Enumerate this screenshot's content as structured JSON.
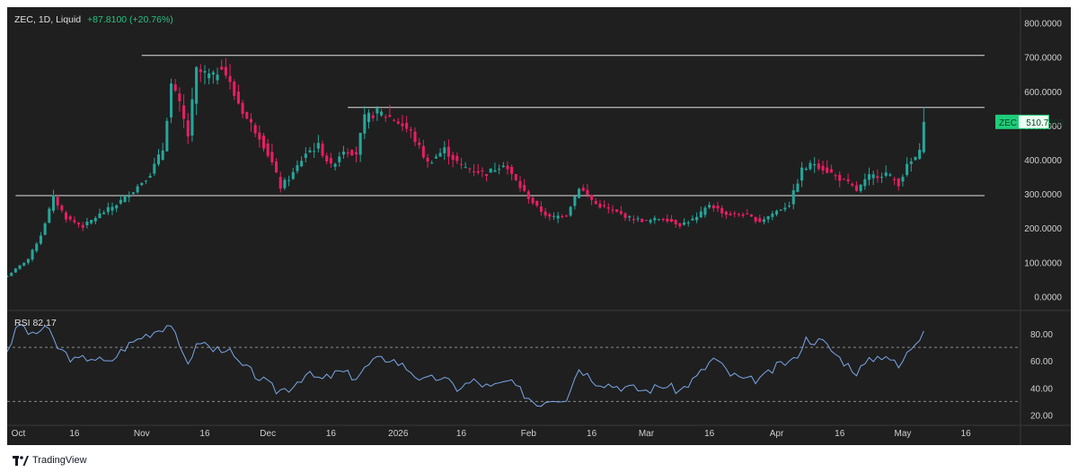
{
  "legend": {
    "symbol": "ZEC, 1D, Liquid",
    "change": "+87.8100 (+20.76%)"
  },
  "rsi_legend": {
    "label": "RSI",
    "value": "82.17"
  },
  "footer": {
    "brand": "TradingView"
  },
  "price_badge": {
    "symbol": "ZEC",
    "price": "510.7200"
  },
  "colors": {
    "background": "#1f1f1f",
    "up": "#26a69a",
    "down": "#e91e63",
    "rsi": "#7aa7e8",
    "line": "#e0e0e0",
    "badge": "#1dce7a"
  },
  "chart_data": [
    {
      "type": "candlestick",
      "title": "",
      "symbol": "ZEC",
      "interval": "1D",
      "ylim": [
        -20,
        820
      ],
      "y_ticks": [
        "0.0000",
        "100.0000",
        "200.0000",
        "300.0000",
        "400.0000",
        "500.0000",
        "600.0000",
        "700.0000",
        "800.0000"
      ],
      "y_tick_values": [
        0,
        100,
        200,
        300,
        400,
        500,
        600,
        700,
        800
      ],
      "x_ticks": [
        "Oct",
        "16",
        "Nov",
        "16",
        "Dec",
        "16",
        "2026",
        "16",
        "Feb",
        "16",
        "Mar",
        "16",
        "Apr",
        "16",
        "May",
        "16"
      ],
      "x_tick_dates": [
        "2025-10-01",
        "2025-10-16",
        "2025-11-01",
        "2025-11-16",
        "2025-12-01",
        "2025-12-16",
        "2026-01-01",
        "2026-01-16",
        "2026-02-01",
        "2026-02-16",
        "2026-03-01",
        "2026-03-16",
        "2026-04-01",
        "2026-04-16",
        "2026-05-01",
        "2026-05-16"
      ],
      "x_range": [
        "2025-09-30",
        "2026-05-29"
      ],
      "horizontal_lines": [
        {
          "y": 705,
          "from": "2025-11-01",
          "to": "2026-05-29"
        },
        {
          "y": 553,
          "from": "2025-12-20",
          "to": "2026-05-29"
        },
        {
          "y": 295,
          "from": "2025-10-02",
          "to": "2026-05-29"
        }
      ],
      "close_anchors": [
        [
          "2025-09-30",
          60
        ],
        [
          "2025-10-05",
          110
        ],
        [
          "2025-10-08",
          180
        ],
        [
          "2025-10-11",
          290
        ],
        [
          "2025-10-14",
          230
        ],
        [
          "2025-10-18",
          205
        ],
        [
          "2025-10-22",
          240
        ],
        [
          "2025-10-26",
          270
        ],
        [
          "2025-10-30",
          310
        ],
        [
          "2025-11-03",
          360
        ],
        [
          "2025-11-06",
          430
        ],
        [
          "2025-11-08",
          620
        ],
        [
          "2025-11-10",
          560
        ],
        [
          "2025-11-12",
          470
        ],
        [
          "2025-11-14",
          660
        ],
        [
          "2025-11-18",
          640
        ],
        [
          "2025-11-20",
          680
        ],
        [
          "2025-11-23",
          590
        ],
        [
          "2025-11-26",
          520
        ],
        [
          "2025-11-29",
          470
        ],
        [
          "2025-12-02",
          390
        ],
        [
          "2025-12-04",
          320
        ],
        [
          "2025-12-07",
          360
        ],
        [
          "2025-12-10",
          420
        ],
        [
          "2025-12-13",
          440
        ],
        [
          "2025-12-16",
          380
        ],
        [
          "2025-12-19",
          430
        ],
        [
          "2025-12-22",
          420
        ],
        [
          "2025-12-24",
          520
        ],
        [
          "2025-12-27",
          540
        ],
        [
          "2025-12-31",
          520
        ],
        [
          "2026-01-04",
          480
        ],
        [
          "2026-01-08",
          390
        ],
        [
          "2026-01-12",
          430
        ],
        [
          "2026-01-16",
          380
        ],
        [
          "2026-01-22",
          360
        ],
        [
          "2026-01-26",
          390
        ],
        [
          "2026-01-30",
          320
        ],
        [
          "2026-02-03",
          260
        ],
        [
          "2026-02-06",
          230
        ],
        [
          "2026-02-10",
          240
        ],
        [
          "2026-02-13",
          320
        ],
        [
          "2026-02-17",
          270
        ],
        [
          "2026-02-21",
          250
        ],
        [
          "2026-02-25",
          230
        ],
        [
          "2026-03-01",
          220
        ],
        [
          "2026-03-05",
          230
        ],
        [
          "2026-03-09",
          210
        ],
        [
          "2026-03-13",
          230
        ],
        [
          "2026-03-16",
          270
        ],
        [
          "2026-03-20",
          240
        ],
        [
          "2026-03-24",
          240
        ],
        [
          "2026-03-28",
          220
        ],
        [
          "2026-04-01",
          250
        ],
        [
          "2026-04-04",
          270
        ],
        [
          "2026-04-07",
          370
        ],
        [
          "2026-04-10",
          390
        ],
        [
          "2026-04-14",
          360
        ],
        [
          "2026-04-18",
          330
        ],
        [
          "2026-04-20",
          310
        ],
        [
          "2026-04-23",
          350
        ],
        [
          "2026-04-27",
          360
        ],
        [
          "2026-04-30",
          330
        ],
        [
          "2026-05-02",
          380
        ],
        [
          "2026-05-05",
          420
        ],
        [
          "2026-05-06",
          510.72
        ]
      ],
      "last_high": 555,
      "last_price": 510.72
    },
    {
      "type": "line",
      "title": "RSI",
      "ylim": [
        15,
        92
      ],
      "y_ticks": [
        "20.00",
        "40.00",
        "60.00",
        "80.00"
      ],
      "y_tick_values": [
        20,
        40,
        60,
        80
      ],
      "bands": [
        70,
        30
      ],
      "series": [
        {
          "name": "RSI",
          "anchors": [
            [
              "2025-09-30",
              68
            ],
            [
              "2025-10-03",
              88
            ],
            [
              "2025-10-06",
              78
            ],
            [
              "2025-10-09",
              86
            ],
            [
              "2025-10-12",
              70
            ],
            [
              "2025-10-16",
              60
            ],
            [
              "2025-10-20",
              63
            ],
            [
              "2025-10-24",
              58
            ],
            [
              "2025-10-28",
              70
            ],
            [
              "2025-11-01",
              78
            ],
            [
              "2025-11-04",
              82
            ],
            [
              "2025-11-08",
              88
            ],
            [
              "2025-11-10",
              68
            ],
            [
              "2025-11-12",
              60
            ],
            [
              "2025-11-15",
              75
            ],
            [
              "2025-11-18",
              68
            ],
            [
              "2025-11-21",
              70
            ],
            [
              "2025-11-24",
              58
            ],
            [
              "2025-11-27",
              52
            ],
            [
              "2025-11-30",
              45
            ],
            [
              "2025-12-03",
              38
            ],
            [
              "2025-12-06",
              40
            ],
            [
              "2025-12-10",
              50
            ],
            [
              "2025-12-14",
              46
            ],
            [
              "2025-12-18",
              52
            ],
            [
              "2025-12-22",
              48
            ],
            [
              "2025-12-26",
              60
            ],
            [
              "2025-12-30",
              62
            ],
            [
              "2026-01-03",
              55
            ],
            [
              "2026-01-07",
              45
            ],
            [
              "2026-01-11",
              48
            ],
            [
              "2026-01-15",
              40
            ],
            [
              "2026-01-19",
              45
            ],
            [
              "2026-01-23",
              40
            ],
            [
              "2026-01-27",
              45
            ],
            [
              "2026-01-30",
              38
            ],
            [
              "2026-02-03",
              28
            ],
            [
              "2026-02-06",
              32
            ],
            [
              "2026-02-10",
              33
            ],
            [
              "2026-02-13",
              55
            ],
            [
              "2026-02-17",
              45
            ],
            [
              "2026-02-21",
              42
            ],
            [
              "2026-02-25",
              40
            ],
            [
              "2026-03-01",
              38
            ],
            [
              "2026-03-05",
              42
            ],
            [
              "2026-03-09",
              38
            ],
            [
              "2026-03-13",
              48
            ],
            [
              "2026-03-17",
              62
            ],
            [
              "2026-03-21",
              50
            ],
            [
              "2026-03-25",
              45
            ],
            [
              "2026-03-29",
              48
            ],
            [
              "2026-04-02",
              58
            ],
            [
              "2026-04-05",
              60
            ],
            [
              "2026-04-08",
              76
            ],
            [
              "2026-04-12",
              74
            ],
            [
              "2026-04-16",
              62
            ],
            [
              "2026-04-20",
              52
            ],
            [
              "2026-04-24",
              62
            ],
            [
              "2026-04-27",
              65
            ],
            [
              "2026-04-30",
              55
            ],
            [
              "2026-05-03",
              70
            ],
            [
              "2026-05-06",
              82.17
            ]
          ]
        }
      ]
    }
  ]
}
